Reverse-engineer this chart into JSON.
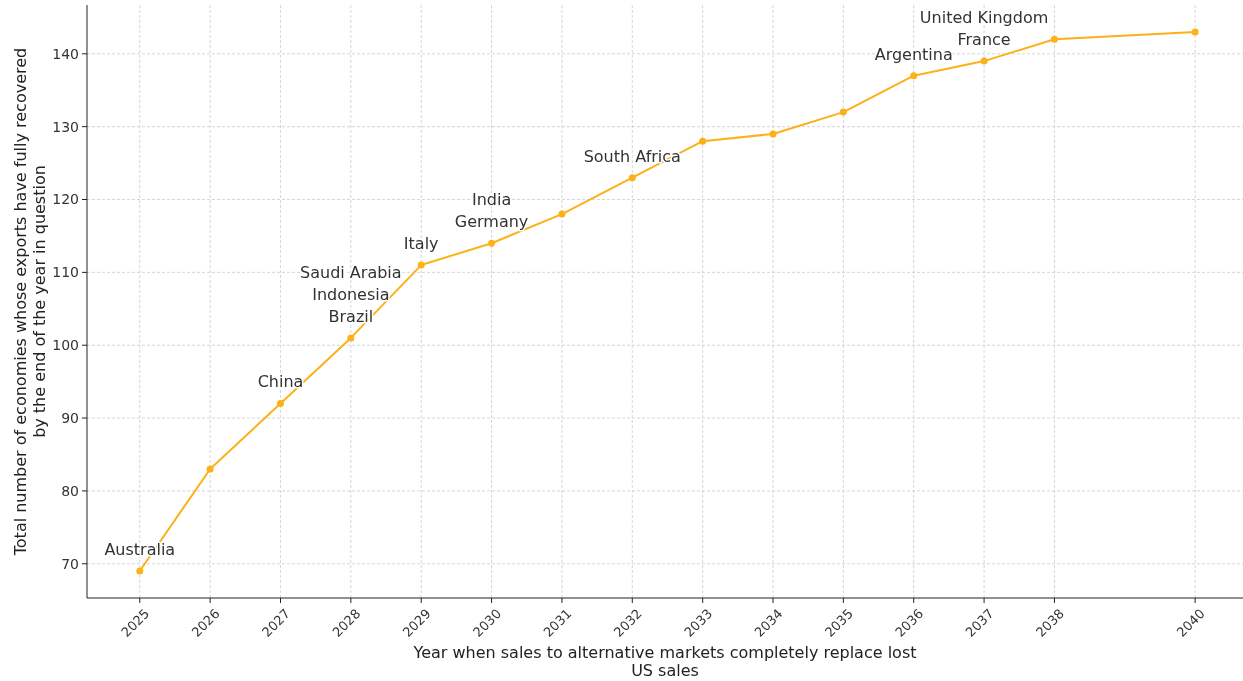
{
  "chart_data": {
    "type": "line",
    "xlabel": "Year when sales to alternative markets completely replace lost US sales",
    "ylabel": "Total number of economies whose exports have fully recovered by the end of the year in question",
    "x": [
      2025,
      2026,
      2027,
      2028,
      2029,
      2030,
      2031,
      2032,
      2033,
      2034,
      2035,
      2036,
      2037,
      2038,
      2040
    ],
    "series": [
      {
        "color": "#fbb117",
        "values": [
          69,
          83,
          92,
          101,
          111,
          114,
          118,
          123,
          128,
          129,
          132,
          137,
          139,
          142,
          143
        ]
      }
    ],
    "xlim": [
      2024.25,
      2040.68
    ],
    "ylim": [
      65.3,
      146.7
    ],
    "xticks": [
      2025,
      2026,
      2027,
      2028,
      2029,
      2030,
      2031,
      2032,
      2033,
      2034,
      2035,
      2036,
      2037,
      2038,
      2040
    ],
    "yticks": [
      70,
      80,
      90,
      100,
      110,
      120,
      130,
      140
    ],
    "grid": true,
    "marker": "circle",
    "line_style": "solid",
    "annotations": [
      {
        "text": "Australia",
        "x": 2025,
        "y": 69
      },
      {
        "text": "China",
        "x": 2027,
        "y": 92
      },
      {
        "text": "Saudi Arabia\nIndonesia\nBrazil",
        "x": 2028,
        "y": 101
      },
      {
        "text": "Italy",
        "x": 2029,
        "y": 111
      },
      {
        "text": "India\nGermany",
        "x": 2030,
        "y": 114
      },
      {
        "text": "South Africa",
        "x": 2032,
        "y": 123
      },
      {
        "text": "Argentina",
        "x": 2036,
        "y": 137
      },
      {
        "text": "United Kingdom\nFrance",
        "x": 2037,
        "y": 139
      }
    ]
  }
}
